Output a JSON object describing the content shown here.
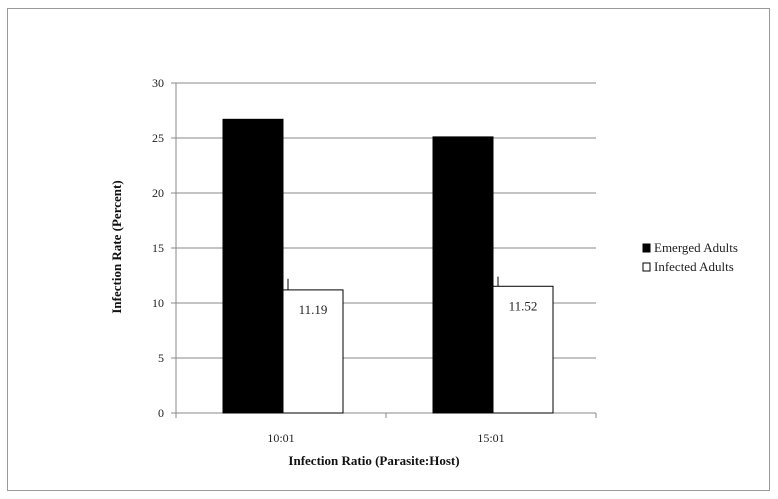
{
  "chart_data": {
    "type": "bar",
    "xlabel": "Infection Ratio (Parasite:Host)",
    "ylabel": "Infection Rate (Percent)",
    "categories": [
      "10:01",
      "15:01"
    ],
    "series": [
      {
        "name": "Emerged Adults",
        "values": [
          26.7,
          25.1
        ],
        "color": "#000000"
      },
      {
        "name": "Infected Adults",
        "values": [
          11.19,
          11.52
        ],
        "color": "#ffffff",
        "error_high": [
          12.2,
          12.4
        ]
      }
    ],
    "data_labels": [
      "11.19",
      "11.52"
    ],
    "ylim": [
      0,
      30
    ],
    "yticks": [
      "0",
      "5",
      "10",
      "15",
      "20",
      "25",
      "30"
    ],
    "grid": "horizontal",
    "legend": "right"
  }
}
